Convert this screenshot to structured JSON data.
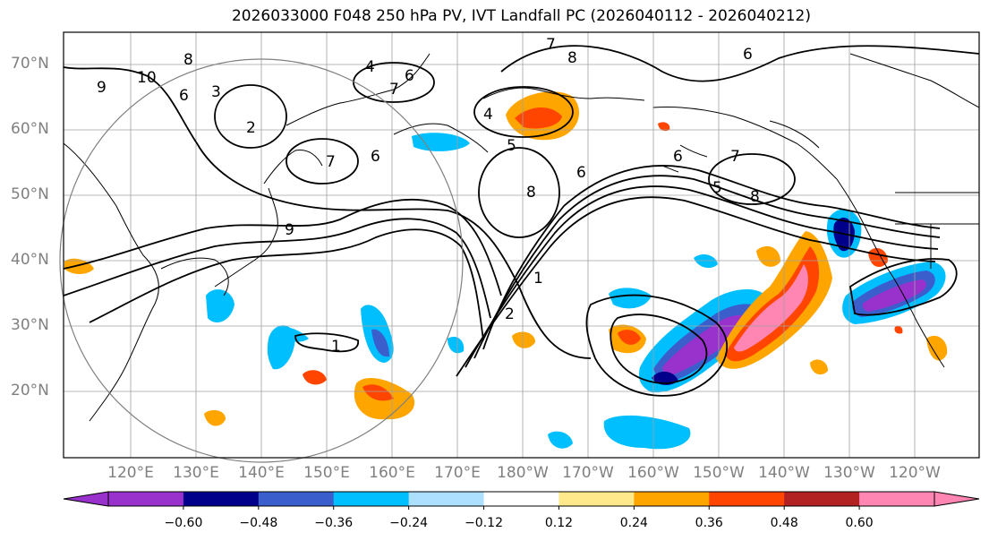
{
  "title": "2026033000 F048 250 hPa PV, IVT Landfall PC (2026040112 - 2026040212)",
  "lat_labels": [
    "70°N",
    "60°N",
    "50°N",
    "40°N",
    "30°N",
    "20°N"
  ],
  "lon_labels": [
    "120°E",
    "130°E",
    "140°E",
    "150°E",
    "160°E",
    "170°E",
    "180°W",
    "170°W",
    "160°W",
    "150°W",
    "140°W",
    "130°W",
    "120°W"
  ],
  "contour_labels": [
    "8",
    "9",
    "10",
    "6",
    "3",
    "2",
    "4",
    "7",
    "6",
    "4",
    "5",
    "7",
    "8",
    "6",
    "6",
    "7",
    "8",
    "5",
    "6",
    "1",
    "2",
    "1",
    "9",
    "8",
    "7",
    "6"
  ],
  "colorbar": {
    "ticks": [
      "−0.60",
      "−0.48",
      "−0.36",
      "−0.24",
      "−0.12",
      "0.12",
      "0.24",
      "0.36",
      "0.48",
      "0.60"
    ],
    "colors": [
      "#9932CC",
      "#00008B",
      "#3A5FCD",
      "#00BFFF",
      "#ADDFFF",
      "#FFFFFF",
      "#FFE98A",
      "#FFA500",
      "#FF4500",
      "#B22222",
      "#FF85B2"
    ]
  },
  "colors": {
    "coast": "#000000",
    "grid": "#a0a0a0",
    "circle": "#808080",
    "axis_text": "#808080"
  }
}
